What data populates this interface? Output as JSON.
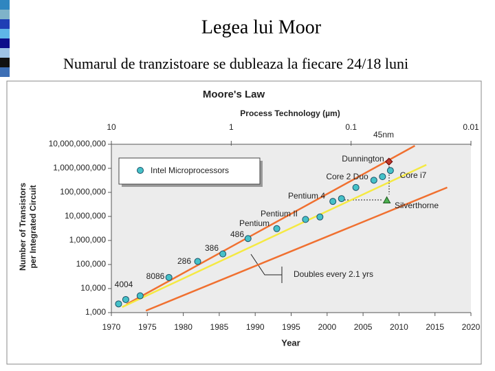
{
  "header": {
    "title": "Legea lui Moor",
    "subtitle": "Numarul de tranzistoare se dubleaza la fiecare 24/18 luni"
  },
  "chart_data": {
    "type": "scatter",
    "title": "Moore's Law",
    "x_label": "Year",
    "y_label": [
      "Number of Transistors",
      "per Integrated Circuit"
    ],
    "x2_label": "Process Technology (µm)",
    "xlim": [
      1970,
      2020
    ],
    "xticks": [
      1970,
      1975,
      1980,
      1985,
      1990,
      1995,
      2000,
      2005,
      2010,
      2015,
      2020
    ],
    "ylim": [
      1000,
      10000000000
    ],
    "log_y": true,
    "yticks": [
      {
        "value": 1000,
        "label": "1,000"
      },
      {
        "value": 10000,
        "label": "10,000"
      },
      {
        "value": 100000,
        "label": "100,000"
      },
      {
        "value": 1000000,
        "label": "1,000,000"
      },
      {
        "value": 10000000,
        "label": "10,000,000"
      },
      {
        "value": 100000000,
        "label": "100,000,000"
      },
      {
        "value": 1000000000,
        "label": "1,000,000,000"
      },
      {
        "value": 10000000000,
        "label": "10,000,000,000"
      }
    ],
    "x2lim": [
      10,
      0.01
    ],
    "log_x2": true,
    "x2ticks": [
      10,
      1,
      0.1,
      0.01
    ],
    "series": [
      {
        "name": "Intel Microprocessors",
        "color": "#45c1c8",
        "x": [
          1971,
          1972,
          1974,
          1978,
          1982,
          1985.5,
          1989,
          1993,
          1997,
          1999,
          2000.8,
          2002,
          2004,
          2006.5,
          2007.7,
          2008.8
        ],
        "values": [
          2300,
          3500,
          5000,
          29000,
          134000,
          275000,
          1200000,
          3100000,
          7500000,
          9500000,
          42000000,
          55000000,
          160000000,
          320000000,
          450000000,
          810000000
        ]
      }
    ],
    "special_points": [
      {
        "name": "Dunnington",
        "color": "#c0392b",
        "x": 2008.6,
        "value": 1900000000
      },
      {
        "name": "Silverthorne",
        "color": "#4caf50",
        "x": 2008.3,
        "value": 47000000
      }
    ],
    "trend_lines": [
      {
        "color": "#f07030",
        "x": [
          1972.1,
          2012.2
        ],
        "values": [
          2200,
          8700000000
        ]
      },
      {
        "color": "#f5e942",
        "x": [
          1971.5,
          2013.8
        ],
        "values": [
          1700,
          1400000000
        ]
      },
      {
        "color": "#f07030",
        "x": [
          1974.8,
          2016.7
        ],
        "values": [
          1200,
          160000000
        ]
      }
    ],
    "point_labels": [
      "4004",
      "8086",
      "286",
      "386",
      "486",
      "Pentium",
      "Pentium II",
      "Pentium 4",
      "Core 2 Duo",
      "Core i7"
    ],
    "annotations": [
      "45nm",
      "Doubles every 2.1 yrs"
    ],
    "legend": "upper left"
  }
}
